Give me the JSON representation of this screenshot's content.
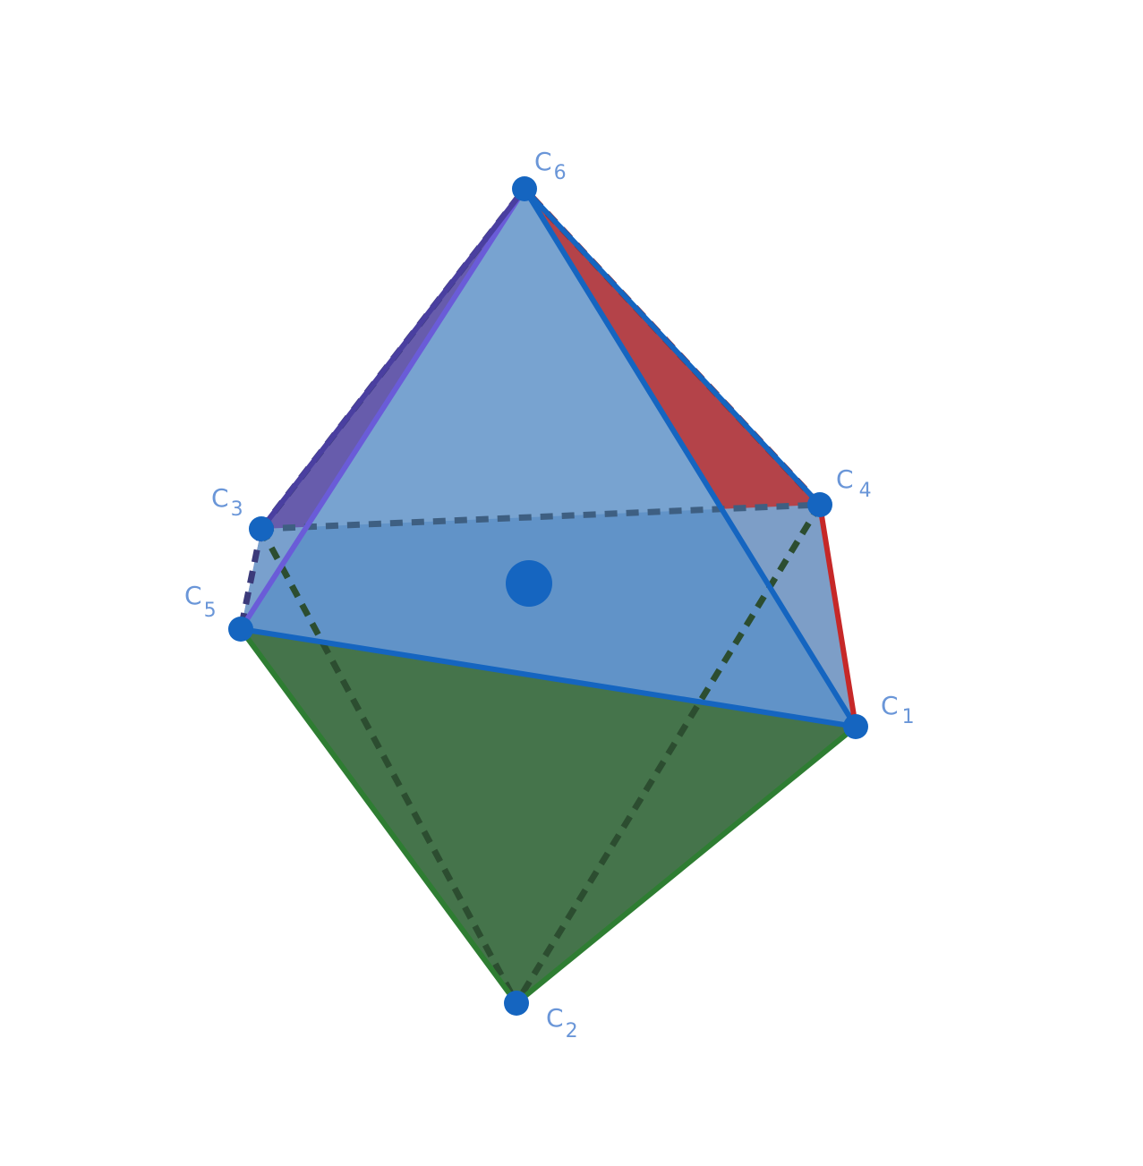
{
  "colors": {
    "edge": "#1565c0",
    "vertex": "#1565c0",
    "label": "#6a96d8",
    "face_front": "#5a8fc6",
    "face_lower_front": "#3f6f45",
    "face_right": "#b0393f",
    "face_left": "#5a4aa8",
    "face_inner": "#7aa3cf",
    "hidden_edge_dark": "#3a5a7a",
    "hidden_edge_green": "#2a4a2a"
  },
  "vertices": {
    "C1": {
      "letter": "C",
      "index": "1"
    },
    "C2": {
      "letter": "C",
      "index": "2"
    },
    "C3": {
      "letter": "C",
      "index": "3"
    },
    "C4": {
      "letter": "C",
      "index": "4"
    },
    "C5": {
      "letter": "C",
      "index": "5"
    },
    "C6": {
      "letter": "C",
      "index": "6"
    }
  }
}
